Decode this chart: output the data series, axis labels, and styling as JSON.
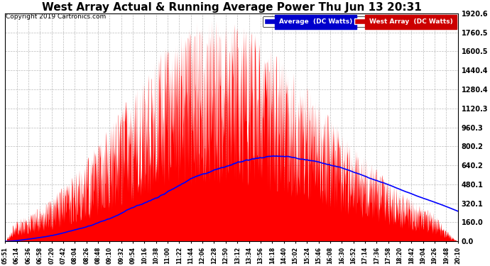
{
  "title": "West Array Actual & Running Average Power Thu Jun 13 20:31",
  "copyright": "Copyright 2019 Cartronics.com",
  "ymax": 1920.6,
  "yticks": [
    0.0,
    160.0,
    320.1,
    480.1,
    640.2,
    800.2,
    960.3,
    1120.3,
    1280.4,
    1440.4,
    1600.5,
    1760.5,
    1920.6
  ],
  "xtick_labels": [
    "05:51",
    "06:14",
    "06:36",
    "06:58",
    "07:20",
    "07:42",
    "08:04",
    "08:26",
    "08:48",
    "09:10",
    "09:32",
    "09:54",
    "10:16",
    "10:38",
    "11:00",
    "11:22",
    "11:44",
    "12:06",
    "12:28",
    "12:50",
    "13:12",
    "13:34",
    "13:56",
    "14:18",
    "14:40",
    "15:02",
    "15:24",
    "15:46",
    "16:08",
    "16:30",
    "16:52",
    "17:14",
    "17:36",
    "17:58",
    "18:20",
    "18:42",
    "19:04",
    "19:26",
    "19:48",
    "20:10"
  ],
  "fill_color": "#FF0000",
  "line_color": "#0000FF",
  "background_color": "#FFFFFF",
  "grid_color": "#AAAAAA",
  "title_fontsize": 11,
  "copyright_fontsize": 6.5,
  "legend_avg_bg": "#0000CC",
  "legend_west_bg": "#CC0000",
  "legend_text_color": "#FFFFFF"
}
